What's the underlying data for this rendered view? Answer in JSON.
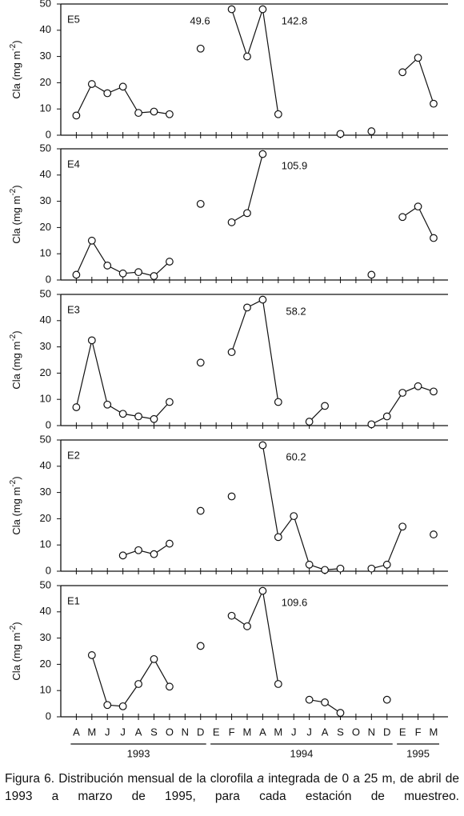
{
  "chart_data": [
    {
      "type": "line",
      "title": "E5",
      "ylabel_parts": [
        "Cla (mg m",
        "-2",
        ")"
      ],
      "ylim": [
        0,
        50
      ],
      "yticks": [
        0,
        10,
        20,
        30,
        40,
        50
      ],
      "series": [
        {
          "name": "E5",
          "color": "#111111",
          "values": [
            7.5,
            19.5,
            16,
            18.5,
            8.5,
            9,
            8,
            null,
            33,
            null,
            48,
            30,
            48,
            8,
            null,
            null,
            null,
            0.5,
            null,
            1.5,
            null,
            24,
            29.5,
            12
          ]
        }
      ],
      "annotations": [
        "49.6",
        "142.8"
      ]
    },
    {
      "type": "line",
      "title": "E4",
      "ylabel_parts": [
        "Cla (mg m",
        "-2",
        ")"
      ],
      "ylim": [
        0,
        50
      ],
      "yticks": [
        0,
        10,
        20,
        30,
        40,
        50
      ],
      "series": [
        {
          "name": "E4",
          "color": "#111111",
          "values": [
            2,
            15,
            5.5,
            2.5,
            3,
            1.5,
            7,
            null,
            29,
            null,
            22,
            25.5,
            48,
            null,
            null,
            null,
            null,
            null,
            null,
            2,
            null,
            24,
            28,
            16
          ]
        }
      ],
      "annotations": [
        "105.9"
      ]
    },
    {
      "type": "line",
      "title": "E3",
      "ylabel_parts": [
        "Cla (mg m",
        "-2",
        ")"
      ],
      "ylim": [
        0,
        50
      ],
      "yticks": [
        0,
        10,
        20,
        30,
        40,
        50
      ],
      "series": [
        {
          "name": "E3",
          "color": "#111111",
          "values": [
            7,
            32.5,
            8,
            4.5,
            3.5,
            2.5,
            9,
            null,
            24,
            null,
            28,
            45,
            48,
            9,
            null,
            1.5,
            7.5,
            null,
            null,
            0.5,
            3.5,
            12.5,
            15,
            13
          ]
        }
      ],
      "annotations": [
        "58.2"
      ]
    },
    {
      "type": "line",
      "title": "E2",
      "ylabel_parts": [
        "Cla (mg m",
        "-2",
        ")"
      ],
      "ylim": [
        0,
        50
      ],
      "yticks": [
        0,
        10,
        20,
        30,
        40,
        50
      ],
      "series": [
        {
          "name": "E2",
          "color": "#111111",
          "values": [
            null,
            null,
            null,
            6,
            8,
            6.5,
            10.5,
            null,
            23,
            null,
            28.5,
            null,
            48,
            13,
            21,
            2.5,
            0.5,
            1,
            null,
            1,
            2.5,
            17,
            null,
            14
          ]
        }
      ],
      "annotations": [
        "60.2"
      ]
    },
    {
      "type": "line",
      "title": "E1",
      "ylabel_parts": [
        "Cla (mg m",
        "-2",
        ")"
      ],
      "ylim": [
        0,
        50
      ],
      "yticks": [
        0,
        10,
        20,
        30,
        40,
        50
      ],
      "categories": [
        "A",
        "M",
        "J",
        "J",
        "A",
        "S",
        "O",
        "N",
        "D",
        "E",
        "F",
        "M",
        "A",
        "M",
        "J",
        "J",
        "A",
        "S",
        "O",
        "N",
        "D",
        "E",
        "F",
        "M"
      ],
      "x_groups": [
        "1993",
        "1994",
        "1995"
      ],
      "series": [
        {
          "name": "E1",
          "color": "#111111",
          "values": [
            null,
            23.5,
            4.5,
            4,
            12.5,
            22,
            11.5,
            null,
            27,
            null,
            38.5,
            34.5,
            48,
            12.5,
            null,
            6.5,
            5.5,
            1.5,
            null,
            null,
            6.5,
            null,
            null,
            null
          ]
        }
      ],
      "annotations": [
        "109.6"
      ]
    }
  ],
  "caption": [
    "Figura 6. Distribución mensual de la clorofila ",
    "a",
    " integrada de 0 a 25 m, de abril de 1993 a marzo de 1995, para cada estación de muestreo."
  ]
}
